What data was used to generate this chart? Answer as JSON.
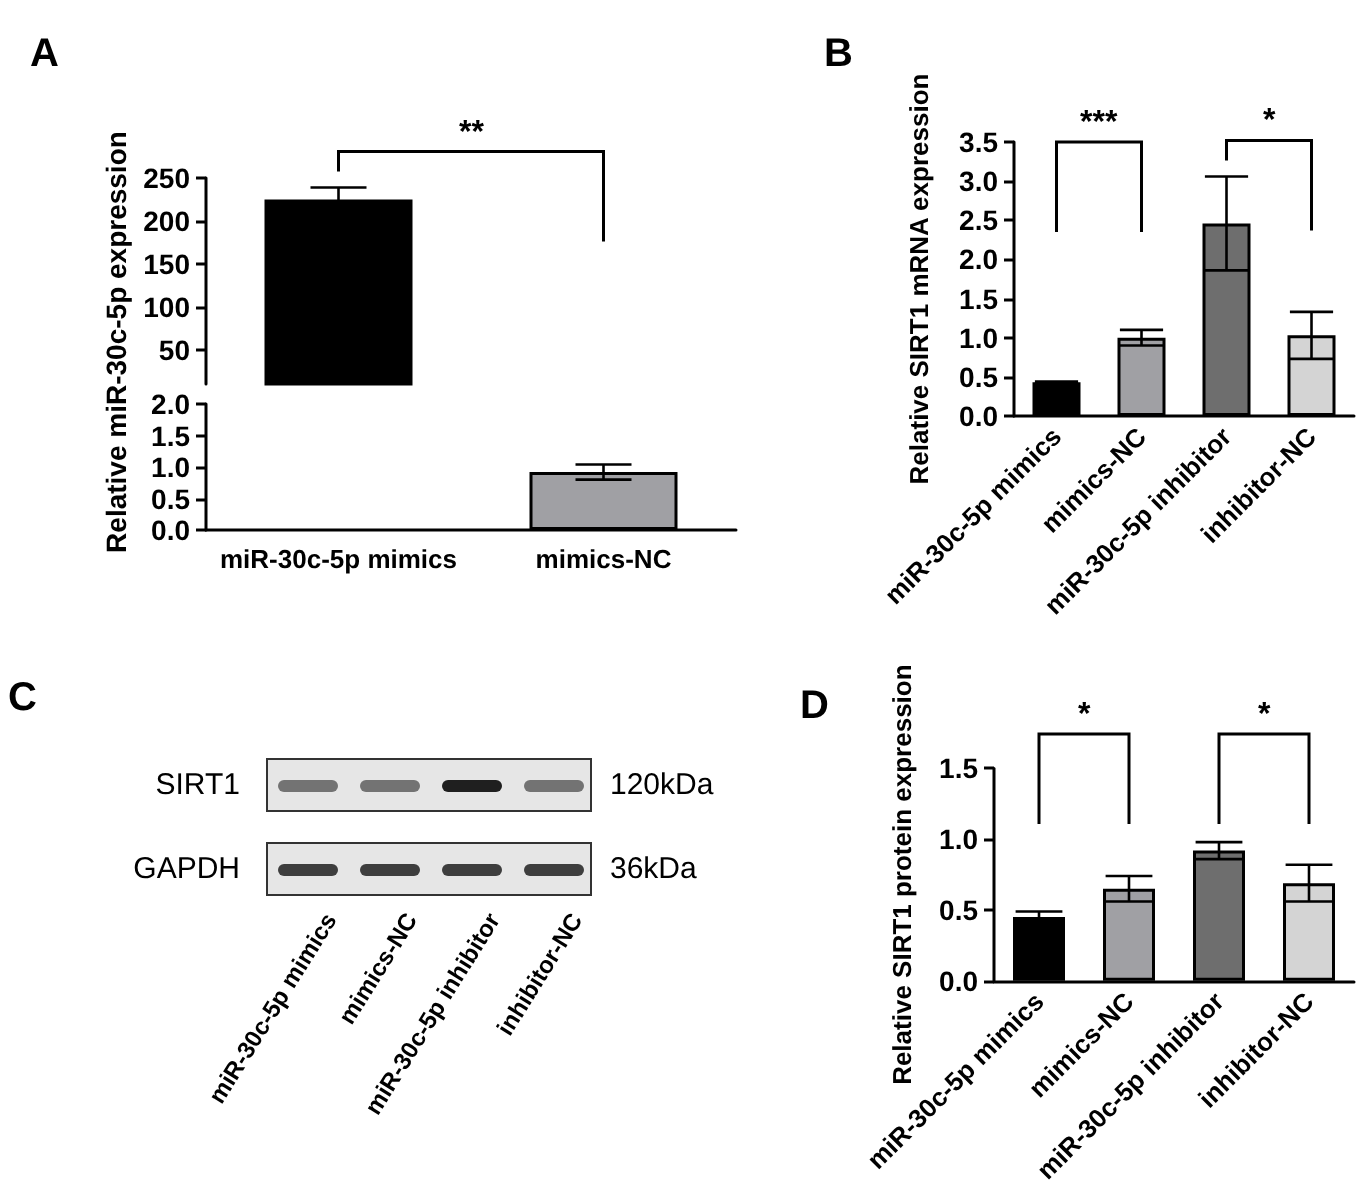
{
  "chart_data": [
    {
      "type": "bar",
      "title": "A",
      "ylabel": "Relative miR-30c-5p expression",
      "categories": [
        null
      ],
      "colors": [
        "#000000"
      ],
      "values": [
        225
      ],
      "errors": [
        14
      ],
      "ylim": [
        10,
        250
      ],
      "yticks": [
        50,
        100,
        150,
        200,
        250
      ],
      "tick_labels": "y",
      "annotations": [
        "**"
      ],
      "grid": false
    },
    {
      "type": "bar",
      "categories": [
        "miR-30c-5p mimics",
        "mimics-NC"
      ],
      "colors": [
        "#000000",
        "#a0a0a4"
      ],
      "values": [
        null,
        0.92
      ],
      "errors": [
        null,
        0.12
      ],
      "ylim": [
        0,
        2
      ],
      "yticks": [
        {
          "value": 0,
          "label": "0.0"
        },
        0.5,
        {
          "value": 1,
          "label": "1.0"
        },
        1.5,
        {
          "value": 2,
          "label": "2.0"
        }
      ],
      "grid": false
    },
    {
      "type": "bar",
      "title": "B",
      "ylabel": "Relative SIRT1 mRNA expression",
      "categories": [
        "miR-30c-5p mimics",
        "mimics-NC",
        "miR-30c-5p inhibitor",
        "inhibitor-NC"
      ],
      "colors": [
        "#000000",
        "#a0a0a4",
        "#6e6e6e",
        "#d4d4d4"
      ],
      "values": [
        0.43,
        1.0,
        2.46,
        1.03
      ],
      "errors": [
        0.01,
        0.1,
        0.6,
        0.3
      ],
      "ylim": [
        0,
        3.5
      ],
      "yticks": [
        {
          "value": 0,
          "label": "0.0"
        },
        0.5,
        {
          "value": 1,
          "label": "1.0"
        },
        1.5,
        {
          "value": 2,
          "label": "2.0"
        },
        2.5,
        {
          "value": 3,
          "label": "3.0"
        },
        3.5
      ],
      "annotations": [
        "***",
        "*"
      ],
      "grid": false
    },
    {
      "type": "other",
      "title": "C",
      "categories": [
        "miR-30c-5p mimics",
        "mimics-NC",
        "miR-30c-5p inhibitor",
        "inhibitor-NC"
      ],
      "annotations": [
        "SIRT1",
        "120kDa",
        "GAPDH",
        "36kDa"
      ]
    },
    {
      "type": "bar",
      "title": "D",
      "ylabel": "Relative SIRT1 protein expression",
      "categories": [
        "miR-30c-5p mimics",
        "mimics-NC",
        "miR-30c-5p inhibitor",
        "inhibitor-NC"
      ],
      "colors": [
        "#000000",
        "#a0a0a4",
        "#6e6e6e",
        "#d4d4d4"
      ],
      "values": [
        0.45,
        0.65,
        0.92,
        0.69
      ],
      "errors": [
        0.04,
        0.09,
        0.06,
        0.13
      ],
      "ylim": [
        0,
        1.5
      ],
      "yticks": [
        {
          "value": 0,
          "label": "0.0"
        },
        0.5,
        {
          "value": 1,
          "label": "1.0"
        },
        1.5
      ],
      "annotations": [
        "*",
        "*"
      ],
      "grid": false
    }
  ]
}
